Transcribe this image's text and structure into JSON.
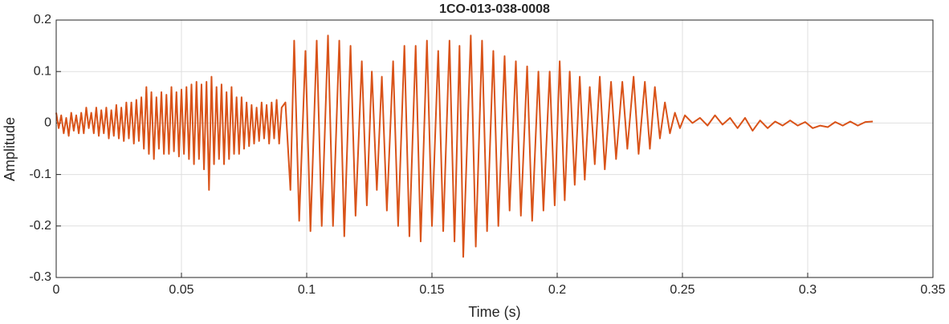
{
  "chart_data": {
    "type": "line",
    "title": "1CO-013-038-0008",
    "x_label": "Time (s)",
    "y_label": "Amplitude",
    "color": "#d95319",
    "grid": true,
    "xlim": [
      0,
      0.35
    ],
    "xticks": [
      0,
      0.05,
      0.1,
      0.15,
      0.2,
      0.25,
      0.3,
      0.35
    ],
    "ylim": [
      -0.3,
      0.2
    ],
    "yticks": [
      -0.3,
      -0.2,
      -0.1,
      0,
      0.1,
      0.2
    ],
    "x": [
      0.0,
      0.001,
      0.002,
      0.003,
      0.004,
      0.005,
      0.006,
      0.007,
      0.008,
      0.009,
      0.01,
      0.011,
      0.012,
      0.013,
      0.014,
      0.015,
      0.016,
      0.017,
      0.018,
      0.019,
      0.02,
      0.021,
      0.022,
      0.023,
      0.024,
      0.025,
      0.026,
      0.027,
      0.028,
      0.029,
      0.03,
      0.031,
      0.032,
      0.033,
      0.034,
      0.035,
      0.036,
      0.037,
      0.038,
      0.039,
      0.04,
      0.041,
      0.042,
      0.043,
      0.044,
      0.045,
      0.046,
      0.047,
      0.048,
      0.049,
      0.05,
      0.051,
      0.052,
      0.053,
      0.054,
      0.055,
      0.056,
      0.057,
      0.058,
      0.059,
      0.06,
      0.061,
      0.062,
      0.063,
      0.064,
      0.065,
      0.066,
      0.067,
      0.068,
      0.069,
      0.07,
      0.071,
      0.072,
      0.073,
      0.074,
      0.075,
      0.076,
      0.077,
      0.078,
      0.079,
      0.08,
      0.081,
      0.082,
      0.083,
      0.084,
      0.085,
      0.086,
      0.087,
      0.088,
      0.089,
      0.09,
      0.0915,
      0.0935,
      0.095,
      0.097,
      0.0995,
      0.1015,
      0.104,
      0.106,
      0.1085,
      0.1105,
      0.113,
      0.115,
      0.1175,
      0.1195,
      0.122,
      0.124,
      0.126,
      0.128,
      0.13,
      0.132,
      0.1345,
      0.1365,
      0.139,
      0.141,
      0.1435,
      0.1455,
      0.148,
      0.15,
      0.1525,
      0.1545,
      0.157,
      0.159,
      0.161,
      0.1625,
      0.1655,
      0.1675,
      0.17,
      0.172,
      0.1745,
      0.1765,
      0.179,
      0.181,
      0.1835,
      0.1855,
      0.188,
      0.19,
      0.1925,
      0.1945,
      0.197,
      0.199,
      0.201,
      0.203,
      0.205,
      0.207,
      0.209,
      0.211,
      0.213,
      0.215,
      0.217,
      0.219,
      0.2215,
      0.2235,
      0.226,
      0.228,
      0.2305,
      0.2325,
      0.235,
      0.237,
      0.239,
      0.241,
      0.243,
      0.245,
      0.247,
      0.249,
      0.251,
      0.254,
      0.257,
      0.26,
      0.263,
      0.266,
      0.269,
      0.272,
      0.275,
      0.278,
      0.281,
      0.284,
      0.287,
      0.29,
      0.293,
      0.296,
      0.299,
      0.302,
      0.305,
      0.308,
      0.311,
      0.314,
      0.317,
      0.32,
      0.323,
      0.326
    ],
    "values": [
      0.02,
      -0.01,
      0.015,
      -0.02,
      0.01,
      -0.025,
      0.02,
      -0.015,
      0.015,
      -0.02,
      0.02,
      -0.02,
      0.03,
      -0.01,
      0.02,
      -0.02,
      0.03,
      -0.025,
      0.025,
      -0.02,
      0.03,
      -0.03,
      0.025,
      -0.025,
      0.035,
      -0.03,
      0.03,
      -0.035,
      0.04,
      -0.03,
      0.04,
      -0.04,
      0.045,
      -0.035,
      0.05,
      -0.05,
      0.07,
      -0.06,
      0.06,
      -0.07,
      0.05,
      -0.05,
      0.06,
      -0.06,
      0.055,
      -0.06,
      0.07,
      -0.055,
      0.06,
      -0.065,
      0.065,
      -0.06,
      0.07,
      -0.07,
      0.075,
      -0.08,
      0.08,
      -0.07,
      0.075,
      -0.09,
      0.08,
      -0.13,
      0.09,
      -0.08,
      0.07,
      -0.07,
      0.075,
      -0.08,
      0.06,
      -0.07,
      0.07,
      -0.06,
      0.05,
      -0.06,
      0.05,
      -0.05,
      0.04,
      -0.045,
      0.035,
      -0.04,
      0.03,
      -0.035,
      0.04,
      -0.03,
      0.035,
      -0.04,
      0.04,
      -0.03,
      0.045,
      -0.04,
      0.03,
      0.04,
      -0.13,
      0.16,
      -0.19,
      0.14,
      -0.21,
      0.16,
      -0.2,
      0.17,
      -0.2,
      0.16,
      -0.22,
      0.15,
      -0.18,
      0.12,
      -0.16,
      0.1,
      -0.13,
      0.09,
      -0.17,
      0.12,
      -0.2,
      0.15,
      -0.22,
      0.15,
      -0.23,
      0.16,
      -0.2,
      0.14,
      -0.21,
      0.16,
      -0.23,
      0.15,
      -0.26,
      0.17,
      -0.24,
      0.16,
      -0.21,
      0.14,
      -0.2,
      0.13,
      -0.17,
      0.12,
      -0.18,
      0.11,
      -0.19,
      0.1,
      -0.17,
      0.1,
      -0.16,
      0.12,
      -0.15,
      0.1,
      -0.12,
      0.09,
      -0.11,
      0.07,
      -0.08,
      0.09,
      -0.09,
      0.08,
      -0.07,
      0.08,
      -0.05,
      0.09,
      -0.06,
      0.08,
      -0.05,
      0.07,
      -0.03,
      0.04,
      -0.02,
      0.02,
      -0.01,
      0.015,
      0.0,
      0.01,
      -0.005,
      0.015,
      -0.003,
      0.01,
      -0.01,
      0.01,
      -0.015,
      0.005,
      -0.01,
      0.003,
      -0.005,
      0.005,
      -0.005,
      0.002,
      -0.01,
      -0.005,
      -0.008,
      0.002,
      -0.005,
      0.003,
      -0.005,
      0.002,
      0.003
    ]
  }
}
